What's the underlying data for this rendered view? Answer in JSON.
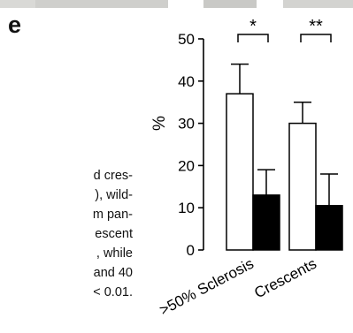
{
  "panel_letter": "e",
  "caption_lines": [
    "d cres-",
    "), wild-",
    "m pan-",
    "escent",
    ", while",
    "and 40",
    "< 0.01."
  ],
  "colors": {
    "wild_type": "#ffffff",
    "mutant": "#000000",
    "axis": "#000000"
  },
  "chart_data": {
    "type": "bar",
    "categories": [
      ">50% Sclerosis",
      "Crescents"
    ],
    "series": [
      {
        "values": [
          37,
          30
        ],
        "errors": [
          7,
          5
        ],
        "color": "#ffffff"
      },
      {
        "values": [
          13,
          10.5
        ],
        "errors": [
          6,
          7.5
        ],
        "color": "#000000"
      }
    ],
    "ylabel": "%",
    "ylim": [
      0,
      50
    ],
    "yticks": [
      0,
      10,
      20,
      30,
      40,
      50
    ],
    "significance": [
      "*",
      "**"
    ],
    "grid": false
  }
}
